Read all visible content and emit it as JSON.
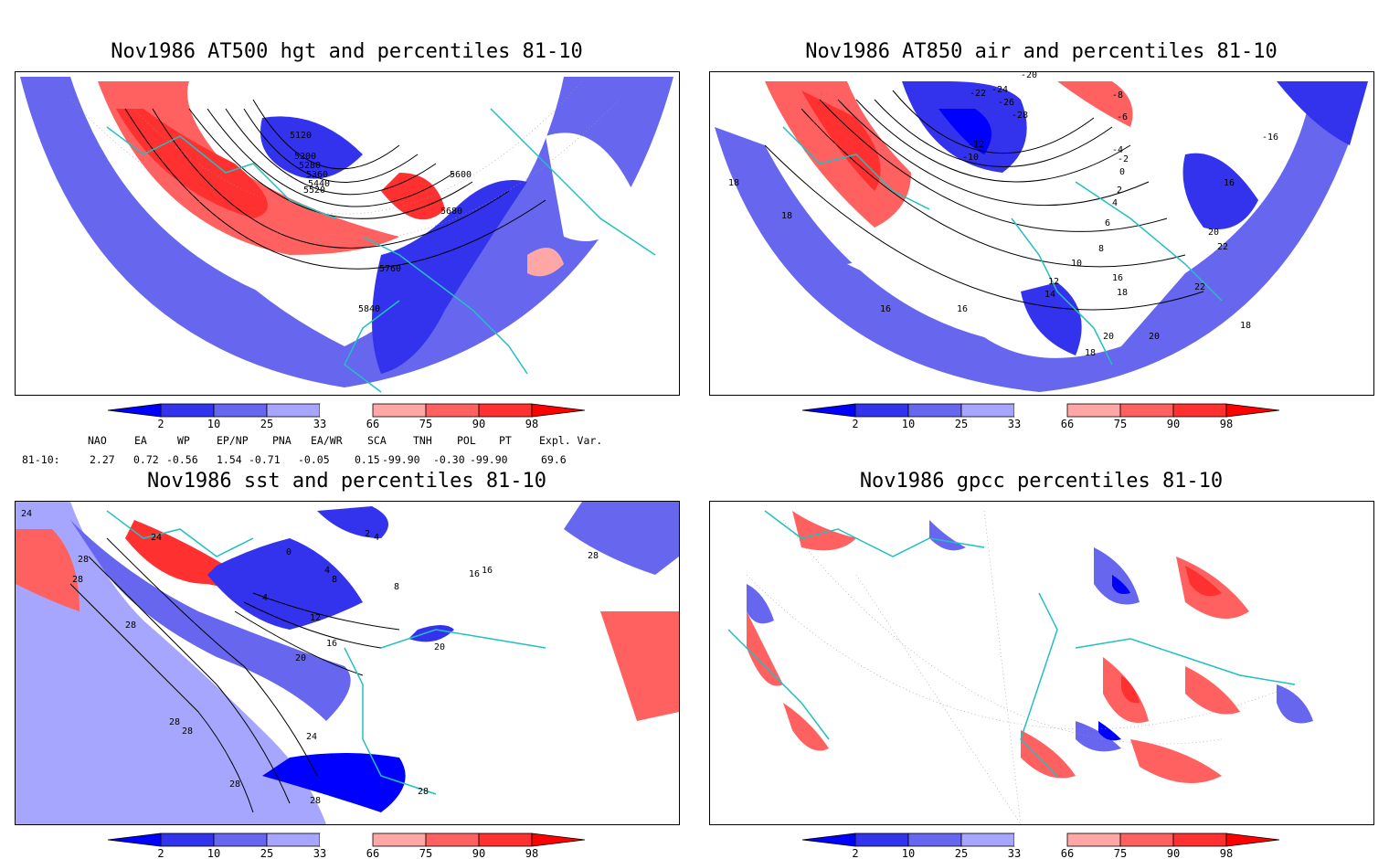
{
  "panels": [
    {
      "id": "hgt",
      "title": "Nov1986 AT500 hgt and percentiles 81-10",
      "contour_labels": [
        "5120",
        "5200",
        "5280",
        "5360",
        "5440",
        "5520",
        "5600",
        "5680",
        "5760",
        "5840"
      ]
    },
    {
      "id": "air",
      "title": "Nov1986 AT850 air and percentiles 81-10",
      "contour_labels": [
        "-24",
        "-22",
        "-20",
        "-26",
        "-28",
        "-12",
        "-10",
        "-8",
        "-6",
        "-4",
        "-2",
        "0",
        "2",
        "4",
        "6",
        "8",
        "10",
        "12",
        "14",
        "16",
        "16",
        "16",
        "18",
        "18",
        "18",
        "18",
        "18",
        "20",
        "20",
        "20",
        "22",
        "22",
        "-16",
        "16"
      ]
    },
    {
      "id": "sst",
      "title": "Nov1986 sst and percentiles 81-10",
      "contour_labels": [
        "24",
        "24",
        "28",
        "28",
        "0",
        "2",
        "4",
        "4",
        "4",
        "8",
        "8",
        "12",
        "16",
        "16",
        "20",
        "20",
        "24",
        "28",
        "28",
        "28",
        "28",
        "28",
        "28",
        "16",
        "28"
      ]
    },
    {
      "id": "gpcc",
      "title": "Nov1986 gpcc percentiles 81-10",
      "contour_labels": []
    }
  ],
  "colorbar": {
    "ticks": [
      "2",
      "10",
      "25",
      "33",
      "66",
      "75",
      "90",
      "98"
    ],
    "colors": {
      "below_2": "#0000ff",
      "b2_10": "#3333ee",
      "b10_25": "#6666ee",
      "b25_33": "#a6a6ff",
      "b33_66": "#ffffff",
      "b66_75": "#ffa6a6",
      "b75_90": "#ff6060",
      "b90_98": "#ff3030",
      "above_98": "#ff0000"
    }
  },
  "colors": {
    "coast": "#22c0c0",
    "contour": "#000000"
  },
  "indices": {
    "headers": [
      "NAO",
      "EA",
      "WP",
      "EP/NP",
      "PNA",
      "EA/WR",
      "SCA",
      "TNH",
      "POL",
      "PT",
      "Expl. Var."
    ],
    "row_label": "81-10:",
    "values": [
      "2.27",
      "0.72",
      "-0.56",
      "1.54",
      "-0.71",
      "-0.05",
      "0.15",
      "-99.90",
      "-0.30",
      "-99.90",
      "69.6"
    ]
  }
}
